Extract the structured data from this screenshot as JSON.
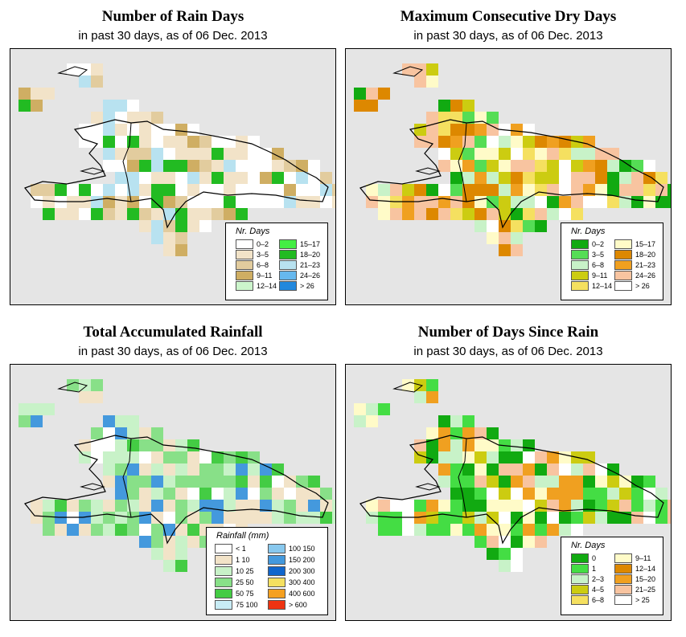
{
  "panels": [
    {
      "title": "Number of Rain Days",
      "subtitle": "in past 30 days, as of  06 Dec. 2013",
      "legend": {
        "title": "Nr. Days",
        "items": [
          {
            "label": "0–2",
            "color": "#ffffff"
          },
          {
            "label": "3–5",
            "color": "#f2e3c8"
          },
          {
            "label": "6–8",
            "color": "#e2cc9e"
          },
          {
            "label": "9–11",
            "color": "#cfae63"
          },
          {
            "label": "12–14",
            "color": "#ccf5cc"
          },
          {
            "label": "15–17",
            "color": "#44ee44"
          },
          {
            "label": "18–20",
            "color": "#22bb22"
          },
          {
            "label": "21–23",
            "color": "#b8e2f0"
          },
          {
            "label": "24–26",
            "color": "#66b8ee"
          },
          {
            "label": "> 26",
            "color": "#2288dd"
          }
        ]
      }
    },
    {
      "title": "Maximum Consecutive Dry Days",
      "subtitle": "in past 30 days, as of  06 Dec. 2013",
      "legend": {
        "title": "Nr. Days",
        "items": [
          {
            "label": "0–2",
            "color": "#11aa11"
          },
          {
            "label": "3–5",
            "color": "#55dd55"
          },
          {
            "label": "6–8",
            "color": "#c8f2c8"
          },
          {
            "label": "9–11",
            "color": "#cccc11"
          },
          {
            "label": "12–14",
            "color": "#f5e060"
          },
          {
            "label": "15–17",
            "color": "#fffbc8"
          },
          {
            "label": "18–20",
            "color": "#dd8800"
          },
          {
            "label": "21–23",
            "color": "#f0a020"
          },
          {
            "label": "24–26",
            "color": "#f8c4a0"
          },
          {
            "label": "> 26",
            "color": "#ffffff"
          }
        ]
      }
    },
    {
      "title": "Total Accumulated Rainfall",
      "subtitle": "in past 30 days, as of  06 Dec. 2013",
      "legend": {
        "title": "Rainfall (mm)",
        "items": [
          {
            "label": "< 1",
            "color": "#ffffff"
          },
          {
            "label": "1    10",
            "color": "#f2e3c8"
          },
          {
            "label": "10    25",
            "color": "#c8f2c8"
          },
          {
            "label": "25    50",
            "color": "#88e088"
          },
          {
            "label": "50    75",
            "color": "#44cc44"
          },
          {
            "label": "75   100",
            "color": "#c8ecf5"
          },
          {
            "label": "100   150",
            "color": "#88c8ee"
          },
          {
            "label": "150   200",
            "color": "#4499dd"
          },
          {
            "label": "200   300",
            "color": "#1166cc"
          },
          {
            "label": "300   400",
            "color": "#f5e060"
          },
          {
            "label": "400   600",
            "color": "#f5a020"
          },
          {
            "label": "> 600",
            "color": "#ee3311"
          }
        ]
      }
    },
    {
      "title": "Number of Days Since Rain",
      "subtitle": "in past 30 days, as of  06 Dec. 2013",
      "legend": {
        "title": "Nr. Days",
        "items": [
          {
            "label": "0",
            "color": "#11aa11"
          },
          {
            "label": "1",
            "color": "#44dd44"
          },
          {
            "label": "2–3",
            "color": "#c8f2c8"
          },
          {
            "label": "4–5",
            "color": "#cccc11"
          },
          {
            "label": "6–8",
            "color": "#f5e060"
          },
          {
            "label": "9–11",
            "color": "#fffbc8"
          },
          {
            "label": "12–14",
            "color": "#dd8800"
          },
          {
            "label": "15–20",
            "color": "#f0a020"
          },
          {
            "label": "21–25",
            "color": "#f8c4a0"
          },
          {
            "label": "> 25",
            "color": "#ffffff"
          }
        ]
      }
    }
  ]
}
